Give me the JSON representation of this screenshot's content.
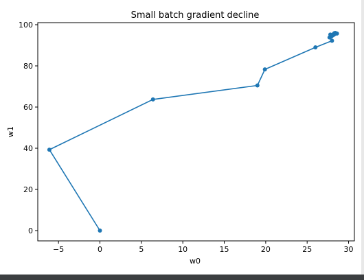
{
  "chart_data": {
    "type": "line",
    "title": "Small batch gradient decline",
    "xlabel": "w0",
    "ylabel": "w1",
    "xlim": [
      -7.5,
      30.7
    ],
    "ylim": [
      -5,
      101
    ],
    "xticks": [
      -5,
      0,
      5,
      10,
      15,
      20,
      25,
      30
    ],
    "xtick_labels": [
      "−5",
      "0",
      "5",
      "10",
      "15",
      "20",
      "25",
      "30"
    ],
    "yticks": [
      0,
      20,
      40,
      60,
      80,
      100
    ],
    "ytick_labels": [
      "0",
      "20",
      "40",
      "60",
      "80",
      "100"
    ],
    "grid": false,
    "line_color": "#1f77b4",
    "marker": "circle",
    "series": [
      {
        "x": [
          0,
          -6.1,
          6.4,
          19.0,
          19.9,
          26.0,
          28.0,
          27.7,
          28.0,
          28.2,
          27.9,
          28.3,
          28.5,
          28.1,
          27.8,
          28.4,
          28.2,
          28.6,
          28.0,
          28.3
        ],
        "y": [
          0,
          39.3,
          63.7,
          70.5,
          78.3,
          89.0,
          92.2,
          93.8,
          94.6,
          95.1,
          94.2,
          95.4,
          95.8,
          94.9,
          95.2,
          96.0,
          95.5,
          95.7,
          95.0,
          95.9
        ]
      }
    ]
  }
}
